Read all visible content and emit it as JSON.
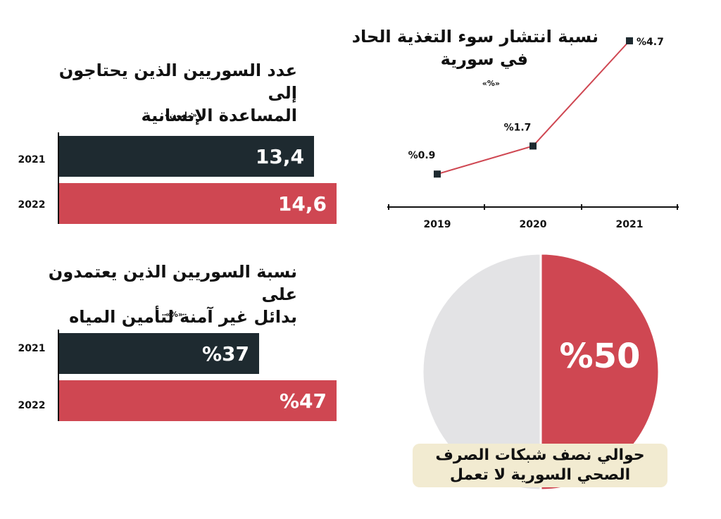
{
  "bar_chart_1": {
    "title_line1": "عدد السوريين الذين يحتاجون إلى",
    "title_line2": "المساعدة الإنسانية",
    "unit": "«مليون»",
    "rows": [
      {
        "year": "2021",
        "label": "13,4",
        "color": "#1e2a30"
      },
      {
        "year": "2022",
        "label": "14,6",
        "color": "#cf4752"
      }
    ]
  },
  "bar_chart_2": {
    "title_line1": "نسبة السوريين الذين يعتمدون على",
    "title_line2": "بدائل غير آمنة لتأمين المياه",
    "unit": "«%»",
    "rows": [
      {
        "year": "2021",
        "label": "%37",
        "color": "#1e2a30"
      },
      {
        "year": "2022",
        "label": "%47",
        "color": "#cf4752"
      }
    ]
  },
  "line_chart": {
    "title_line1": "نسبة انتشار سوء التغذية الحاد",
    "title_line2": "في سورية",
    "unit": "«%»",
    "point_labels": [
      "%0.9",
      "%1.7",
      "%4.7"
    ],
    "line_color": "#cf4752"
  },
  "pie_chart": {
    "center_label": "%50",
    "caption_line1": "حوالي نصف شبكات الصرف",
    "caption_line2": "الصحي السورية لا تعمل",
    "colors": [
      "#cf4752",
      "#e3e3e5"
    ]
  },
  "chart_data": [
    {
      "type": "bar",
      "title": "عدد السوريين الذين يحتاجون إلى المساعدة الإنسانية",
      "ylabel": "«مليون»",
      "categories": [
        "2021",
        "2022"
      ],
      "values": [
        13.4,
        14.6
      ],
      "orientation": "horizontal"
    },
    {
      "type": "line",
      "title": "نسبة انتشار سوء التغذية الحاد في سورية",
      "ylabel": "«%»",
      "x": [
        "2019",
        "2020",
        "2021"
      ],
      "values": [
        0.9,
        1.7,
        4.7
      ]
    },
    {
      "type": "bar",
      "title": "نسبة السوريين الذين يعتمدون على بدائل غير آمنة لتأمين المياه",
      "ylabel": "«%»",
      "categories": [
        "2021",
        "2022"
      ],
      "values": [
        37,
        47
      ],
      "orientation": "horizontal"
    },
    {
      "type": "pie",
      "values": [
        50,
        50
      ]
    }
  ]
}
